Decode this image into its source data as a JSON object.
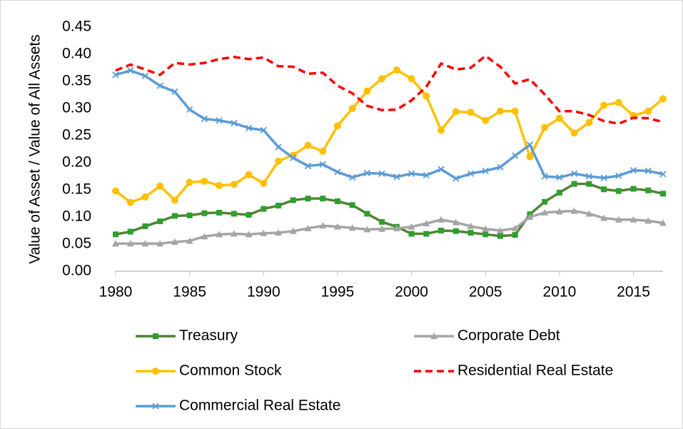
{
  "chart_data": {
    "type": "line",
    "y_label": "Value of Asset / Value of All Assets",
    "x": [
      1980,
      1981,
      1982,
      1983,
      1984,
      1985,
      1986,
      1987,
      1988,
      1989,
      1990,
      1991,
      1992,
      1993,
      1994,
      1995,
      1996,
      1997,
      1998,
      1999,
      2000,
      2001,
      2002,
      2003,
      2004,
      2005,
      2006,
      2007,
      2008,
      2009,
      2010,
      2011,
      2012,
      2013,
      2014,
      2015,
      2016,
      2017
    ],
    "xlim": [
      1980,
      2017
    ],
    "xticks": [
      1980,
      1985,
      1990,
      1995,
      2000,
      2005,
      2010,
      2015
    ],
    "ylim": [
      0,
      0.45
    ],
    "yticks": [
      {
        "value": 0,
        "label": "0.00"
      },
      {
        "value": 0.05,
        "label": "0.05"
      },
      {
        "value": 0.1,
        "label": "0.10"
      },
      {
        "value": 0.15,
        "label": "0.15"
      },
      {
        "value": 0.2,
        "label": "0.20"
      },
      {
        "value": 0.25,
        "label": "0.25"
      },
      {
        "value": 0.3,
        "label": "0.30"
      },
      {
        "value": 0.35,
        "label": "0.35"
      },
      {
        "value": 0.4,
        "label": "0.40"
      },
      {
        "value": 0.45,
        "label": "0.45"
      }
    ],
    "grid": false,
    "legend": "bottom",
    "series": [
      {
        "name": "Treasury",
        "color": "#548235",
        "marker": "square",
        "marker_color": "#2ca02c",
        "dash": false,
        "values": [
          0.068,
          0.073,
          0.083,
          0.092,
          0.102,
          0.103,
          0.107,
          0.108,
          0.106,
          0.104,
          0.115,
          0.121,
          0.131,
          0.134,
          0.134,
          0.129,
          0.122,
          0.106,
          0.091,
          0.082,
          0.069,
          0.069,
          0.075,
          0.074,
          0.071,
          0.068,
          0.065,
          0.067,
          0.105,
          0.128,
          0.145,
          0.161,
          0.161,
          0.151,
          0.148,
          0.152,
          0.149,
          0.143
        ]
      },
      {
        "name": "Corporate Debt",
        "color": "#a5a5a5",
        "marker": "triangle",
        "marker_color": "#a5a5a5",
        "dash": false,
        "values": [
          0.051,
          0.051,
          0.051,
          0.051,
          0.054,
          0.056,
          0.064,
          0.068,
          0.069,
          0.068,
          0.07,
          0.071,
          0.074,
          0.079,
          0.084,
          0.082,
          0.08,
          0.077,
          0.078,
          0.079,
          0.082,
          0.088,
          0.095,
          0.09,
          0.083,
          0.078,
          0.075,
          0.079,
          0.1,
          0.108,
          0.11,
          0.111,
          0.106,
          0.098,
          0.095,
          0.095,
          0.093,
          0.089
        ]
      },
      {
        "name": "Common Stock",
        "color": "#ffc000",
        "marker": "circle",
        "marker_color": "#ffc000",
        "dash": false,
        "values": [
          0.148,
          0.127,
          0.137,
          0.157,
          0.131,
          0.164,
          0.166,
          0.158,
          0.16,
          0.178,
          0.162,
          0.203,
          0.214,
          0.232,
          0.221,
          0.268,
          0.3,
          0.332,
          0.355,
          0.371,
          0.355,
          0.323,
          0.26,
          0.294,
          0.293,
          0.278,
          0.295,
          0.295,
          0.211,
          0.265,
          0.282,
          0.255,
          0.274,
          0.306,
          0.311,
          0.287,
          0.295,
          0.318
        ]
      },
      {
        "name": "Residential Real Estate",
        "color": "#ff0000",
        "marker": "none",
        "marker_color": "#ff0000",
        "dash": true,
        "values": [
          0.37,
          0.381,
          0.372,
          0.362,
          0.384,
          0.381,
          0.384,
          0.391,
          0.395,
          0.391,
          0.394,
          0.378,
          0.377,
          0.364,
          0.366,
          0.342,
          0.328,
          0.305,
          0.297,
          0.298,
          0.315,
          0.34,
          0.383,
          0.372,
          0.375,
          0.397,
          0.377,
          0.346,
          0.354,
          0.326,
          0.295,
          0.295,
          0.288,
          0.277,
          0.272,
          0.283,
          0.282,
          0.275
        ]
      },
      {
        "name": "Commercial Real Estate",
        "color": "#5b9bd5",
        "marker": "x",
        "marker_color": "#5b9bd5",
        "dash": false,
        "values": [
          0.362,
          0.37,
          0.36,
          0.342,
          0.331,
          0.298,
          0.281,
          0.278,
          0.273,
          0.264,
          0.26,
          0.229,
          0.209,
          0.194,
          0.197,
          0.183,
          0.173,
          0.181,
          0.18,
          0.174,
          0.18,
          0.177,
          0.188,
          0.171,
          0.18,
          0.185,
          0.192,
          0.213,
          0.233,
          0.175,
          0.173,
          0.18,
          0.175,
          0.172,
          0.176,
          0.186,
          0.185,
          0.179
        ]
      }
    ]
  }
}
